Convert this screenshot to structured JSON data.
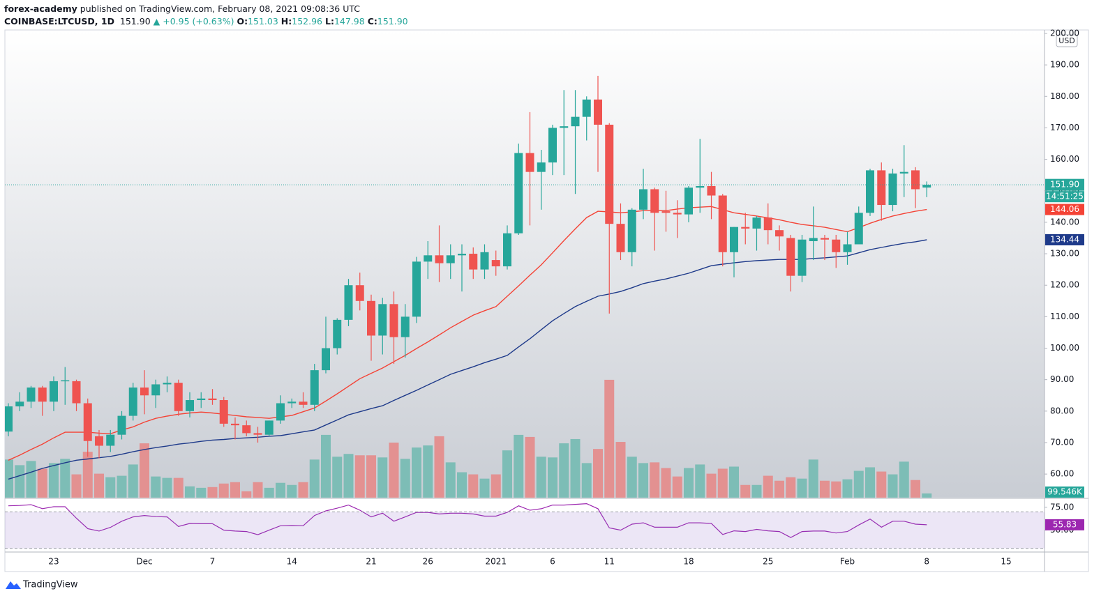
{
  "header": {
    "author": "forex-academy",
    "published": "published on TradingView.com, February 08, 2021 09:08:36 UTC",
    "symbol": "COINBASE:LTCUSD, 1D",
    "change": "▲ +0.95 (+0.63%)",
    "o": "O:",
    "h": "H:",
    "l": "L:",
    "c": "C:"
  },
  "footer": {
    "brand": "TradingView"
  },
  "chart_data": {
    "type": "candlestick",
    "categories": [
      null,
      null,
      null,
      null,
      "23",
      null,
      null,
      null,
      null,
      null,
      null,
      null,
      "Dec",
      null,
      null,
      null,
      null,
      null,
      "7",
      null,
      null,
      null,
      null,
      null,
      null,
      "14",
      null,
      null,
      null,
      null,
      null,
      null,
      "21",
      null,
      null,
      null,
      null,
      "26",
      null,
      null,
      null,
      null,
      null,
      "2021",
      null,
      null,
      null,
      null,
      "6",
      null,
      null,
      null,
      null,
      "11",
      null,
      null,
      null,
      null,
      null,
      null,
      "18",
      null,
      null,
      null,
      null,
      null,
      null,
      "25",
      null,
      null,
      null,
      null,
      null,
      null,
      "Feb",
      null,
      null,
      null,
      null,
      null,
      null,
      "8",
      null,
      null,
      null,
      null,
      null,
      null,
      "15"
    ],
    "open": [
      73.5,
      81.5,
      83,
      87.5,
      83,
      89.5,
      89.5,
      82.5,
      72,
      69,
      72.5,
      78.5,
      87.5,
      85,
      88.5,
      89,
      80,
      83.5,
      84,
      83.5,
      76,
      75.5,
      73,
      72.5,
      77,
      82.5,
      83,
      82,
      93,
      100,
      109,
      120,
      115,
      104,
      114,
      103.5,
      110,
      127.5,
      129.5,
      127,
      129.5,
      130,
      125,
      128,
      126,
      136.5,
      162,
      156,
      159,
      170,
      170.5,
      173.5,
      179,
      171,
      139.5,
      130.5,
      144,
      150.5,
      143.5,
      143,
      142.5,
      151,
      151.5,
      148.5,
      130.5,
      138.5,
      138,
      141.5,
      137.5,
      135,
      123,
      134,
      135,
      134.5,
      130.5,
      133,
      143,
      156.5,
      145.5,
      155.5,
      156.5,
      151.03,
      null,
      null,
      null,
      null,
      null,
      null,
      null
    ],
    "high": [
      82.5,
      86,
      88,
      88,
      91,
      94,
      90,
      84,
      74,
      74,
      80,
      89,
      93,
      90,
      91,
      90,
      86,
      86,
      87,
      84.5,
      78,
      77,
      75,
      77,
      85,
      84,
      86,
      95,
      110,
      109.5,
      122,
      124,
      117,
      116,
      118,
      114,
      129,
      134,
      139,
      133,
      133,
      132,
      133,
      131,
      139,
      165,
      175,
      163,
      171,
      182,
      182,
      180,
      186.5,
      171.5,
      146,
      144.5,
      157,
      151,
      150,
      147,
      151.5,
      166.5,
      156,
      149,
      138.5,
      143,
      142,
      146,
      139,
      136,
      136,
      145,
      136,
      136,
      137,
      145,
      157,
      159,
      157,
      164.5,
      157.5,
      152.96,
      null,
      null,
      null,
      null,
      null,
      null,
      null
    ],
    "low": [
      72,
      80,
      81,
      78.5,
      80,
      82,
      80,
      65.5,
      65,
      67,
      71,
      77,
      79,
      81,
      86,
      78.5,
      78,
      81,
      82,
      75,
      71,
      72,
      70,
      72,
      76,
      81,
      81,
      80,
      92,
      98,
      107,
      112,
      96,
      98,
      95,
      97,
      108,
      122,
      121,
      122,
      118,
      122,
      122,
      123,
      125,
      136,
      139,
      144,
      155,
      155,
      149,
      166,
      156,
      111,
      128,
      126,
      141,
      131,
      137,
      135,
      140,
      143,
      141,
      126,
      122.5,
      133,
      131,
      133,
      131,
      118,
      121,
      128,
      128,
      125.5,
      126.5,
      133,
      142,
      140.5,
      143.5,
      148,
      144.5,
      147.98,
      null,
      null,
      null,
      null,
      null,
      null,
      null
    ],
    "close": [
      81.5,
      83,
      87.5,
      83,
      89.5,
      89.8,
      82.5,
      70.5,
      69,
      72.5,
      78.5,
      87.5,
      85,
      88.5,
      89,
      80,
      83.5,
      84,
      83.5,
      76,
      75.5,
      73,
      72.5,
      77,
      82.5,
      83,
      82,
      93,
      100,
      109,
      120,
      115,
      104,
      114,
      103.5,
      110,
      127.5,
      129.5,
      127,
      129.5,
      130,
      125,
      130.5,
      126,
      136.5,
      162,
      156,
      159,
      170,
      170.5,
      173.5,
      179,
      171,
      139.5,
      130.5,
      144,
      150.5,
      143,
      143,
      142.5,
      151,
      151.5,
      148.5,
      130.5,
      138.5,
      138,
      141.5,
      137.5,
      135.5,
      123,
      134.5,
      135,
      134.5,
      130.5,
      133,
      143,
      156.5,
      145.5,
      155.5,
      156,
      150.5,
      151.9,
      null,
      null,
      null,
      null,
      null,
      null,
      null
    ],
    "last_close_label": "151.90",
    "countdown": "14:51:25",
    "currency": "USD",
    "up_color": "#26a69a",
    "down_color": "#ef5350",
    "ylim": [
      52.5,
      201.1
    ],
    "yticks": [
      {
        "value": 60,
        "label": "60.00"
      },
      {
        "value": 70,
        "label": "70.00"
      },
      {
        "value": 80,
        "label": "80.00"
      },
      {
        "value": 90,
        "label": "90.00"
      },
      {
        "value": 100,
        "label": "100.00"
      },
      {
        "value": 110,
        "label": "110.00"
      },
      {
        "value": 120,
        "label": "120.00"
      },
      {
        "value": 130,
        "label": "130.00"
      },
      {
        "value": 140,
        "label": "140.00"
      },
      {
        "value": 150,
        "label": "150.00"
      },
      {
        "value": 160,
        "label": "160.00"
      },
      {
        "value": 170,
        "label": "170.00"
      },
      {
        "value": 180,
        "label": "180.00"
      },
      {
        "value": 190,
        "label": "190.00"
      },
      {
        "value": 200,
        "label": "200.00"
      }
    ],
    "overlays": [
      {
        "color": "#f44336",
        "values": [
          64.4,
          66,
          67.8,
          69.5,
          71.5,
          73.3,
          73.3,
          73.3,
          73,
          72.8,
          74,
          75,
          76.5,
          77.7,
          78.4,
          79,
          79.4,
          79.7,
          79.4,
          79,
          78.6,
          78.2,
          78,
          77.7,
          78.2,
          78.6,
          79.8,
          81,
          83.2,
          85.5,
          87.9,
          90.3,
          92,
          93.7,
          95.7,
          97.7,
          99.9,
          102,
          104.2,
          106.5,
          108.5,
          110.5,
          111.9,
          113.2,
          116.5,
          119.8,
          123.2,
          126.5,
          130.3,
          134.2,
          137.9,
          141.5,
          143.5,
          143.3,
          143,
          143.3,
          143.7,
          143.7,
          143.7,
          144.2,
          144.6,
          144.8,
          145,
          144,
          143,
          142.5,
          142,
          141.4,
          140.8,
          140,
          139.3,
          138.9,
          138.4,
          137.7,
          137,
          138.3,
          139.7,
          140.9,
          142,
          142.8,
          143.5,
          144.06,
          null,
          null,
          null,
          null,
          null,
          null,
          null
        ]
      },
      {
        "color": "#1e3a8a",
        "values": [
          58.4,
          59.5,
          60.6,
          61.8,
          62.7,
          63.6,
          64.4,
          64.8,
          65.2,
          65.6,
          66.3,
          67.1,
          67.8,
          68.4,
          68.9,
          69.5,
          69.9,
          70.4,
          70.8,
          71,
          71.3,
          71.5,
          71.7,
          72,
          72.2,
          72.8,
          73.4,
          74,
          75.6,
          77.2,
          78.8,
          79.8,
          80.8,
          81.7,
          83.4,
          85,
          86.6,
          88.3,
          90,
          91.7,
          92.9,
          94.1,
          95.4,
          96.5,
          97.7,
          100.4,
          103,
          105.9,
          108.7,
          111,
          113.2,
          114.9,
          116.5,
          117.2,
          118,
          119.2,
          120.5,
          121.3,
          122,
          122.9,
          123.8,
          125,
          126.2,
          126.7,
          127.1,
          127.5,
          127.8,
          128,
          128.2,
          128.2,
          128.2,
          128.5,
          128.7,
          129,
          129.3,
          130.3,
          131.3,
          132,
          132.7,
          133.3,
          133.8,
          134.44,
          null,
          null,
          null,
          null,
          null,
          null,
          null
        ]
      }
    ],
    "volume": {
      "up_color": "#7dbdb6",
      "down_color": "#e39191",
      "label_color": "#26a69a",
      "ylim": [
        0,
        11000
      ],
      "values": [
        896,
        764,
        863,
        681,
        813,
        913,
        548,
        1079,
        564,
        481,
        515,
        780,
        1278,
        498,
        465,
        465,
        266,
        232,
        249,
        332,
        365,
        149,
        365,
        232,
        349,
        299,
        365,
        896,
        1477,
        963,
        1029,
        996,
        996,
        946,
        1295,
        913,
        1179,
        1228,
        1444,
        830,
        598,
        548,
        448,
        548,
        1112,
        1477,
        1428,
        963,
        946,
        1278,
        1378,
        813,
        1145,
        2772,
        1311,
        963,
        813,
        830,
        697,
        498,
        697,
        780,
        564,
        681,
        730,
        299,
        299,
        515,
        398,
        481,
        448,
        896,
        398,
        382,
        432,
        631,
        714,
        614,
        548,
        847,
        415,
        99.546,
        null,
        null,
        null,
        null,
        null,
        null,
        null
      ],
      "value_labels": [
        null,
        null,
        null,
        null,
        null,
        null,
        null,
        null,
        null,
        null,
        null,
        null,
        null,
        null,
        null,
        null,
        null,
        null,
        null,
        null,
        null,
        null,
        null,
        null,
        null,
        null,
        null,
        null,
        null,
        null,
        null,
        null,
        null,
        null,
        null,
        null,
        null,
        null,
        null,
        null,
        null,
        null,
        null,
        null,
        null,
        null,
        null,
        null,
        null,
        null,
        null,
        null,
        null,
        null,
        null,
        null,
        null,
        null,
        null,
        null,
        null,
        null,
        null,
        null,
        null,
        null,
        null,
        null,
        null,
        null,
        null,
        null,
        null,
        null,
        null,
        null,
        null,
        null,
        null,
        null,
        null,
        "99.546K",
        null,
        null,
        null,
        null,
        null,
        null,
        null
      ]
    },
    "rsi": {
      "color": "#9c27b0",
      "band": [
        30,
        70
      ],
      "band_color": "#7e57c2",
      "ylim": [
        26,
        84
      ],
      "yticks": [
        {
          "value": 75,
          "label": "75.00"
        },
        {
          "value": 50,
          "label": "50.00"
        }
      ],
      "values": [
        76.6,
        77,
        77.8,
        73.5,
        75.6,
        75.6,
        63,
        51.6,
        49,
        53,
        59.7,
        64.5,
        66,
        64.8,
        64.5,
        54,
        57.3,
        57,
        57,
        50,
        49,
        48.4,
        45,
        50,
        54.8,
        55,
        54.8,
        66,
        71,
        74,
        77.4,
        71.8,
        64.5,
        68.5,
        59.7,
        64.5,
        69.4,
        69.4,
        67.7,
        68.5,
        68.5,
        67.7,
        65.3,
        65.3,
        69.4,
        76.6,
        71.8,
        73.4,
        77.4,
        77.4,
        78.2,
        79,
        73.4,
        52.4,
        50,
        56.5,
        58,
        53.2,
        53.2,
        53.2,
        58,
        58,
        57.3,
        45.2,
        49.2,
        48.4,
        50.8,
        49.2,
        48.4,
        41.9,
        48.4,
        49,
        49,
        46.8,
        48.4,
        55.6,
        62.1,
        53.2,
        59.7,
        59.7,
        56.5,
        55.83,
        null,
        null,
        null,
        null,
        null,
        null,
        null
      ]
    }
  }
}
